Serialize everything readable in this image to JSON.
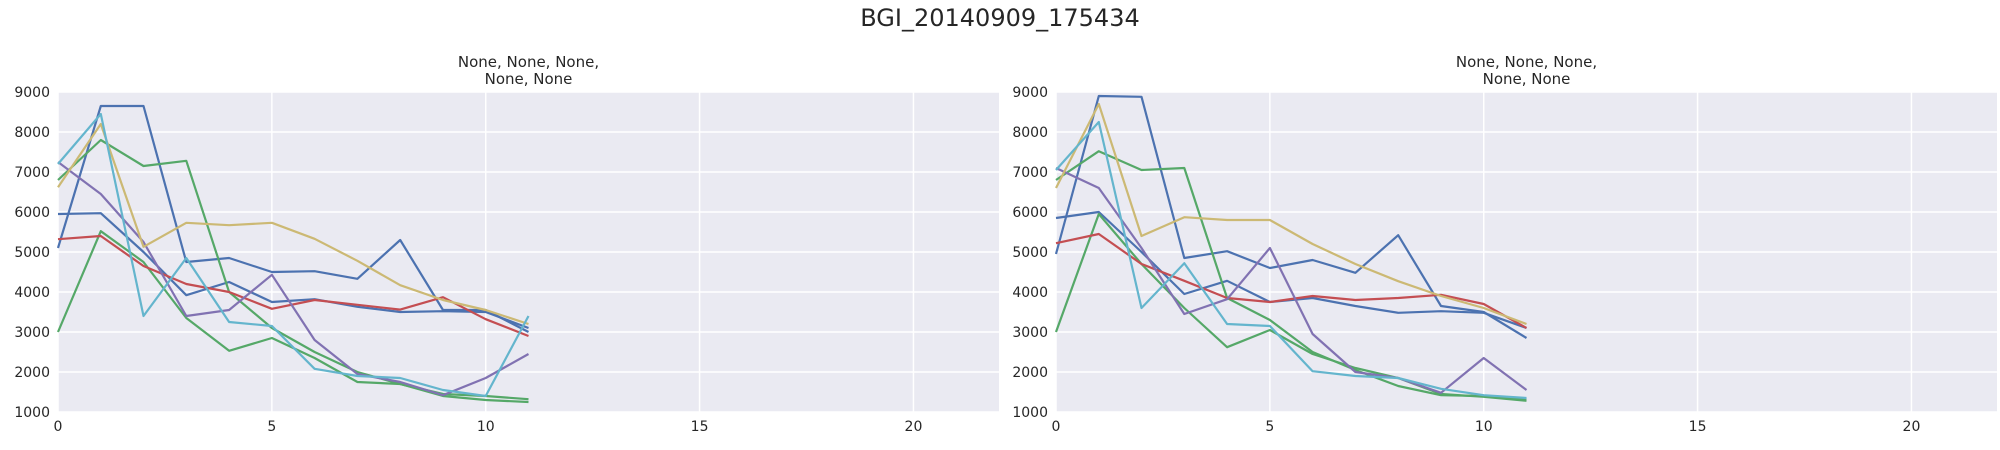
{
  "figure": {
    "title": "BGI_20140909_175434"
  },
  "colors": {
    "background": "#eaeaf2",
    "grid": "#ffffff",
    "palette": [
      "#4c72b0",
      "#55a868",
      "#c44e52",
      "#8172b2",
      "#ccb974",
      "#64b5cd"
    ]
  },
  "chart_data": [
    {
      "type": "line",
      "title": "None, None, None,\nNone, None",
      "title_lines": [
        "None, None, None,",
        "None, None"
      ],
      "xlim": [
        0,
        22
      ],
      "ylim": [
        1000,
        9000
      ],
      "xticks": [
        0,
        5,
        10,
        15,
        20
      ],
      "yticks": [
        1000,
        2000,
        3000,
        4000,
        5000,
        6000,
        7000,
        8000,
        9000
      ],
      "grid": true,
      "x": [
        0,
        1,
        2,
        3,
        4,
        5,
        6,
        7,
        8,
        9,
        10,
        11
      ],
      "series": [
        {
          "color": "#4c72b0",
          "values": [
            5100,
            8650,
            8650,
            4750,
            4850,
            4500,
            4520,
            4330,
            5300,
            3550,
            3550,
            3000
          ]
        },
        {
          "color": "#4c72b0",
          "values": [
            5950,
            5970,
            5000,
            3920,
            4250,
            3750,
            3820,
            3630,
            3500,
            3520,
            3500,
            3100
          ]
        },
        {
          "color": "#55a868",
          "values": [
            6800,
            7800,
            7150,
            7280,
            4000,
            3100,
            2500,
            2000,
            1700,
            1450,
            1400,
            1320
          ]
        },
        {
          "color": "#55a868",
          "values": [
            3000,
            5520,
            4750,
            3350,
            2530,
            2850,
            2350,
            1750,
            1700,
            1400,
            1300,
            1250
          ]
        },
        {
          "color": "#c44e52",
          "values": [
            5320,
            5400,
            4650,
            4200,
            4000,
            3580,
            3800,
            3680,
            3560,
            3870,
            3320,
            2900
          ]
        },
        {
          "color": "#8172b2",
          "values": [
            7250,
            6450,
            5250,
            3400,
            3550,
            4430,
            2800,
            1950,
            1750,
            1420,
            1850,
            2450
          ]
        },
        {
          "color": "#ccb974",
          "values": [
            6620,
            8200,
            5130,
            5730,
            5670,
            5730,
            5330,
            4780,
            4170,
            3800,
            3550,
            3200
          ]
        },
        {
          "color": "#64b5cd",
          "values": [
            7200,
            8450,
            3400,
            4850,
            3250,
            3150,
            2080,
            1900,
            1850,
            1550,
            1400,
            3400
          ]
        }
      ]
    },
    {
      "type": "line",
      "title": "None, None, None,\nNone, None",
      "title_lines": [
        "None, None, None,",
        "None, None"
      ],
      "xlim": [
        0,
        22
      ],
      "ylim": [
        1000,
        9000
      ],
      "xticks": [
        0,
        5,
        10,
        15,
        20
      ],
      "yticks": [
        1000,
        2000,
        3000,
        4000,
        5000,
        6000,
        7000,
        8000,
        9000
      ],
      "grid": true,
      "x": [
        0,
        1,
        2,
        3,
        4,
        5,
        6,
        7,
        8,
        9,
        10,
        11
      ],
      "series": [
        {
          "color": "#4c72b0",
          "values": [
            4950,
            8900,
            8880,
            4850,
            5020,
            4600,
            4800,
            4480,
            5420,
            3650,
            3500,
            2850
          ]
        },
        {
          "color": "#4c72b0",
          "values": [
            5850,
            6000,
            5000,
            3950,
            4280,
            3750,
            3850,
            3650,
            3480,
            3520,
            3480,
            3100
          ]
        },
        {
          "color": "#55a868",
          "values": [
            6800,
            7520,
            7050,
            7100,
            3850,
            3300,
            2500,
            2050,
            1650,
            1420,
            1400,
            1320
          ]
        },
        {
          "color": "#55a868",
          "values": [
            3000,
            5950,
            4700,
            3600,
            2620,
            3050,
            2450,
            2100,
            1850,
            1450,
            1380,
            1280
          ]
        },
        {
          "color": "#c44e52",
          "values": [
            5220,
            5450,
            4700,
            4280,
            3850,
            3750,
            3900,
            3800,
            3850,
            3930,
            3700,
            3100
          ]
        },
        {
          "color": "#8172b2",
          "values": [
            7100,
            6600,
            5100,
            3450,
            3820,
            5100,
            2950,
            2000,
            1850,
            1480,
            2350,
            1550
          ]
        },
        {
          "color": "#ccb974",
          "values": [
            6600,
            8700,
            5400,
            5870,
            5800,
            5800,
            5200,
            4700,
            4270,
            3900,
            3600,
            3200
          ]
        },
        {
          "color": "#64b5cd",
          "values": [
            7050,
            8250,
            3600,
            4720,
            3200,
            3150,
            2020,
            1900,
            1850,
            1580,
            1420,
            1350
          ]
        }
      ]
    }
  ]
}
